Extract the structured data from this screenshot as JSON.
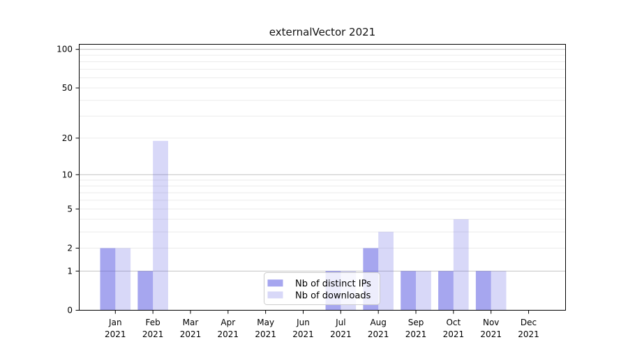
{
  "title": "externalVector 2021",
  "chart_data": {
    "type": "bar",
    "title": "externalVector 2021",
    "categories": [
      "Jan 2021",
      "Feb 2021",
      "Mar 2021",
      "Apr 2021",
      "May 2021",
      "Jun 2021",
      "Jul 2021",
      "Aug 2021",
      "Sep 2021",
      "Oct 2021",
      "Nov 2021",
      "Dec 2021"
    ],
    "x_tick_top": [
      "Jan",
      "Feb",
      "Mar",
      "Apr",
      "May",
      "Jun",
      "Jul",
      "Aug",
      "Sep",
      "Oct",
      "Nov",
      "Dec"
    ],
    "x_tick_bottom": "2021",
    "series": [
      {
        "name": "Nb of distinct IPs",
        "values": [
          2,
          1,
          0,
          0,
          0,
          0,
          1,
          2,
          1,
          1,
          1,
          0
        ],
        "color": "#5c5ce2",
        "fill_opacity": 0.55
      },
      {
        "name": "Nb of downloads",
        "values": [
          2,
          19,
          0,
          0,
          0,
          0,
          1,
          3,
          1,
          4,
          1,
          0
        ],
        "color": "#5c5ce2",
        "fill_opacity": 0.24
      }
    ],
    "y_ticks": [
      0,
      1,
      2,
      5,
      10,
      20,
      50,
      100
    ],
    "y_scale": "symlog",
    "ylim": [
      0,
      110
    ],
    "grid": "horizontal",
    "y_gridlines": {
      "major": [
        1,
        10,
        100
      ],
      "minor": [
        2,
        3,
        4,
        5,
        6,
        7,
        8,
        9,
        20,
        30,
        40,
        50,
        60,
        70,
        80,
        90
      ]
    },
    "legend": {
      "position": "bottom-center-inside",
      "entries": [
        "Nb of distinct IPs",
        "Nb of downloads"
      ]
    }
  },
  "colors": {
    "background": "#ffffff",
    "bar_base": "#5c5ce2",
    "grid_minor": "#ebebeb",
    "grid_major": "#c2c2c2",
    "axis": "#000000",
    "text": "#000000",
    "legend_border": "#cccccc",
    "legend_bg_opacity": "0.8"
  }
}
